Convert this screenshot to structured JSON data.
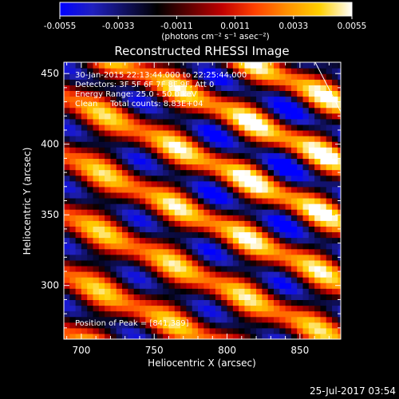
{
  "colorbar": {
    "ticks": [
      "-0.0055",
      "-0.0033",
      "-0.0011",
      "0.0011",
      "0.0033",
      "0.0055"
    ],
    "tick_values": [
      -0.0055,
      -0.0033,
      -0.0011,
      0.0011,
      0.0033,
      0.0055
    ],
    "unit_label": "(photons cm⁻² s⁻¹ asec⁻²)",
    "range": [
      -0.0055,
      0.0055
    ],
    "colormap": [
      "#0000ff",
      "#2020c0",
      "#101060",
      "#000000",
      "#600000",
      "#c00000",
      "#ff4000",
      "#ff9000",
      "#ffd000",
      "#ffffff"
    ]
  },
  "plot": {
    "annotations": [
      "30-Jan-2015 22:13:44.000 to 22:25:44.000",
      "Detectors: 3F 5F 6F 7F 8F 9F, Att 0",
      "Energy Range: 25.0 - 50.0 keV",
      "Clean     Total counts: 8.83E+04"
    ],
    "peak_text": "Position of Peak = [841,389]"
  },
  "footer": {
    "timestamp": "25-Jul-2017 03:54"
  },
  "chart_data": {
    "type": "heatmap",
    "title": "Reconstructed RHESSI Image",
    "xlabel": "Heliocentric X (arcsec)",
    "ylabel": "Heliocentric Y (arcsec)",
    "xlim": [
      688,
      878
    ],
    "ylim": [
      262,
      458
    ],
    "xticks": [
      700,
      750,
      800,
      850
    ],
    "yticks": [
      300,
      350,
      400,
      450
    ],
    "xtick_labels": [
      "700",
      "750",
      "800",
      "850"
    ],
    "ytick_labels": [
      "300",
      "350",
      "400",
      "450"
    ],
    "pixel_size_arcsec": 4,
    "stripe_angle_deg": -25,
    "stripe_spacing_arcsec": 38,
    "peak_position": [
      841,
      389
    ],
    "value_range": [
      -0.0055,
      0.0055
    ],
    "grid": false
  }
}
